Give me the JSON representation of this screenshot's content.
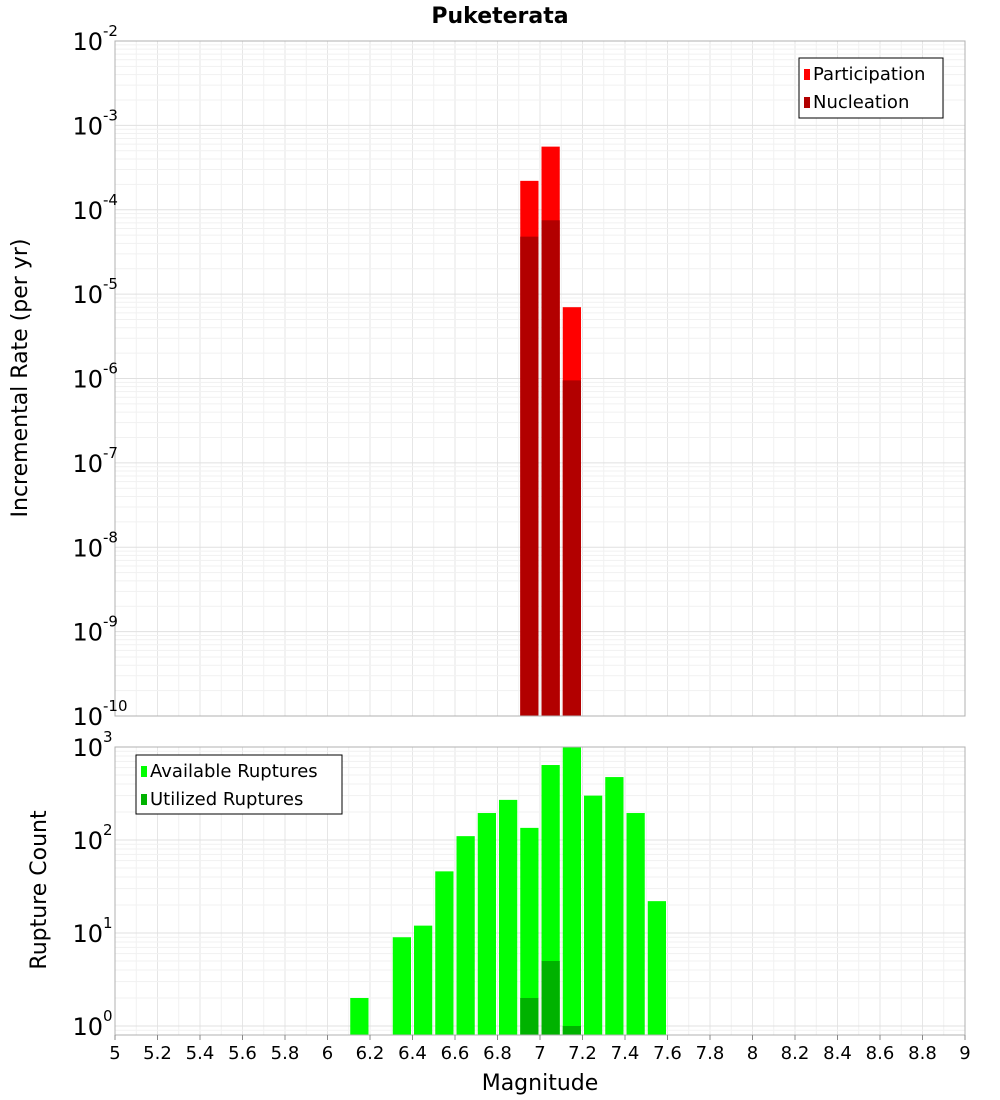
{
  "chart_data": [
    {
      "type": "bar",
      "title": "Puketerata",
      "xlabel": "",
      "ylabel": "Incremental Rate (per yr)",
      "yscale": "log",
      "ylim": [
        1e-10,
        0.01
      ],
      "xlim": [
        5,
        9
      ],
      "y_decade_exponents": [
        "-10",
        "-9",
        "-8",
        "-7",
        "-6",
        "-5",
        "-4",
        "-3",
        "-2"
      ],
      "y_decade_base": "10",
      "bin_width": 0.1,
      "grid": true,
      "legend_position": "top-right",
      "series": [
        {
          "name": "Participation",
          "color": "#ff0000",
          "x": [
            6.95,
            7.05,
            7.15
          ],
          "values": [
            0.00022,
            0.00056,
            7e-06
          ]
        },
        {
          "name": "Nucleation",
          "color": "#b20000",
          "x": [
            6.95,
            7.05,
            7.15
          ],
          "values": [
            4.8e-05,
            7.5e-05,
            9.5e-07
          ]
        }
      ]
    },
    {
      "type": "bar",
      "title": "",
      "xlabel": "Magnitude",
      "ylabel": "Rupture Count",
      "yscale": "log",
      "ylim": [
        0.8,
        1000
      ],
      "xlim": [
        5,
        9
      ],
      "y_decade_exponents": [
        "0",
        "1",
        "2",
        "3"
      ],
      "y_decade_base": "10",
      "x_ticks": [
        "5",
        "5.2",
        "5.4",
        "5.6",
        "5.8",
        "6",
        "6.2",
        "6.4",
        "6.6",
        "6.8",
        "7",
        "7.2",
        "7.4",
        "7.6",
        "7.8",
        "8",
        "8.2",
        "8.4",
        "8.6",
        "8.8",
        "9"
      ],
      "bin_width": 0.1,
      "grid": true,
      "legend_position": "top-left",
      "series": [
        {
          "name": "Available Ruptures",
          "color": "#00ff00",
          "x": [
            6.15,
            6.35,
            6.45,
            6.55,
            6.65,
            6.75,
            6.85,
            6.95,
            7.05,
            7.15,
            7.25,
            7.35,
            7.45,
            7.55
          ],
          "values": [
            2,
            9,
            12,
            46,
            110,
            195,
            270,
            135,
            640,
            1000,
            300,
            475,
            195,
            22
          ]
        },
        {
          "name": "Utilized Ruptures",
          "color": "#00b200",
          "x": [
            6.95,
            7.05,
            7.15
          ],
          "values": [
            2,
            5,
            1
          ]
        }
      ]
    }
  ]
}
